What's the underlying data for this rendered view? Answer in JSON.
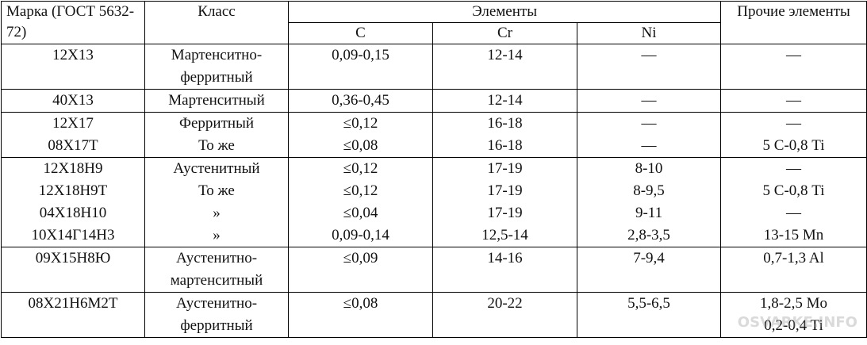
{
  "table": {
    "header": {
      "grade": "Марка (ГОСТ 5632-72)",
      "class": "Класс",
      "elements": "Элементы",
      "c": "C",
      "cr": "Cr",
      "ni": "Ni",
      "other": "Прочие элементы"
    },
    "groups": [
      {
        "grade": [
          "12Х13"
        ],
        "class": [
          "Мартенситно-",
          "ферритный"
        ],
        "c": [
          "0,09-0,15"
        ],
        "cr": [
          "12-14"
        ],
        "ni": [
          "—"
        ],
        "other": [
          "—"
        ]
      },
      {
        "grade": [
          "40Х13"
        ],
        "class": [
          "Мартенситный"
        ],
        "c": [
          "0,36-0,45"
        ],
        "cr": [
          "12-14"
        ],
        "ni": [
          "—"
        ],
        "other": [
          "—"
        ]
      },
      {
        "grade": [
          "12Х17",
          "08Х17Т"
        ],
        "class": [
          "Ферритный",
          "То же"
        ],
        "c": [
          "≤0,12",
          "≤0,08"
        ],
        "cr": [
          "16-18",
          "16-18"
        ],
        "ni": [
          "—",
          "—"
        ],
        "other": [
          "—",
          "5 С-0,8 Ti"
        ]
      },
      {
        "grade": [
          "12Х18Н9",
          "12Х18Н9Т",
          "04Х18Н10",
          "10Х14Г14Н3"
        ],
        "class": [
          "Аустенитный",
          "То же",
          "»",
          "»"
        ],
        "c": [
          "≤0,12",
          "≤0,12",
          "≤0,04",
          "0,09-0,14"
        ],
        "cr": [
          "17-19",
          "17-19",
          "17-19",
          "12,5-14"
        ],
        "ni": [
          "8-10",
          "8-9,5",
          "9-11",
          "2,8-3,5"
        ],
        "other": [
          "—",
          "5 С-0,8 Ti",
          "—",
          "13-15 Mn"
        ]
      },
      {
        "grade": [
          "09Х15Н8Ю"
        ],
        "class": [
          "Аустенитно-",
          "мартенситный"
        ],
        "c": [
          "≤0,09"
        ],
        "cr": [
          "14-16"
        ],
        "ni": [
          "7-9,4"
        ],
        "other": [
          "0,7-1,3 Al"
        ]
      },
      {
        "grade": [
          "08Х21Н6М2Т"
        ],
        "class": [
          "Аустенитно-",
          "ферритный"
        ],
        "c": [
          "≤0,08"
        ],
        "cr": [
          "20-22"
        ],
        "ni": [
          "5,5-6,5"
        ],
        "other": [
          "1,8-2,5 Mo",
          "0,2-0,4 Ti"
        ]
      }
    ]
  },
  "watermark": "OSVARKE.INFO"
}
